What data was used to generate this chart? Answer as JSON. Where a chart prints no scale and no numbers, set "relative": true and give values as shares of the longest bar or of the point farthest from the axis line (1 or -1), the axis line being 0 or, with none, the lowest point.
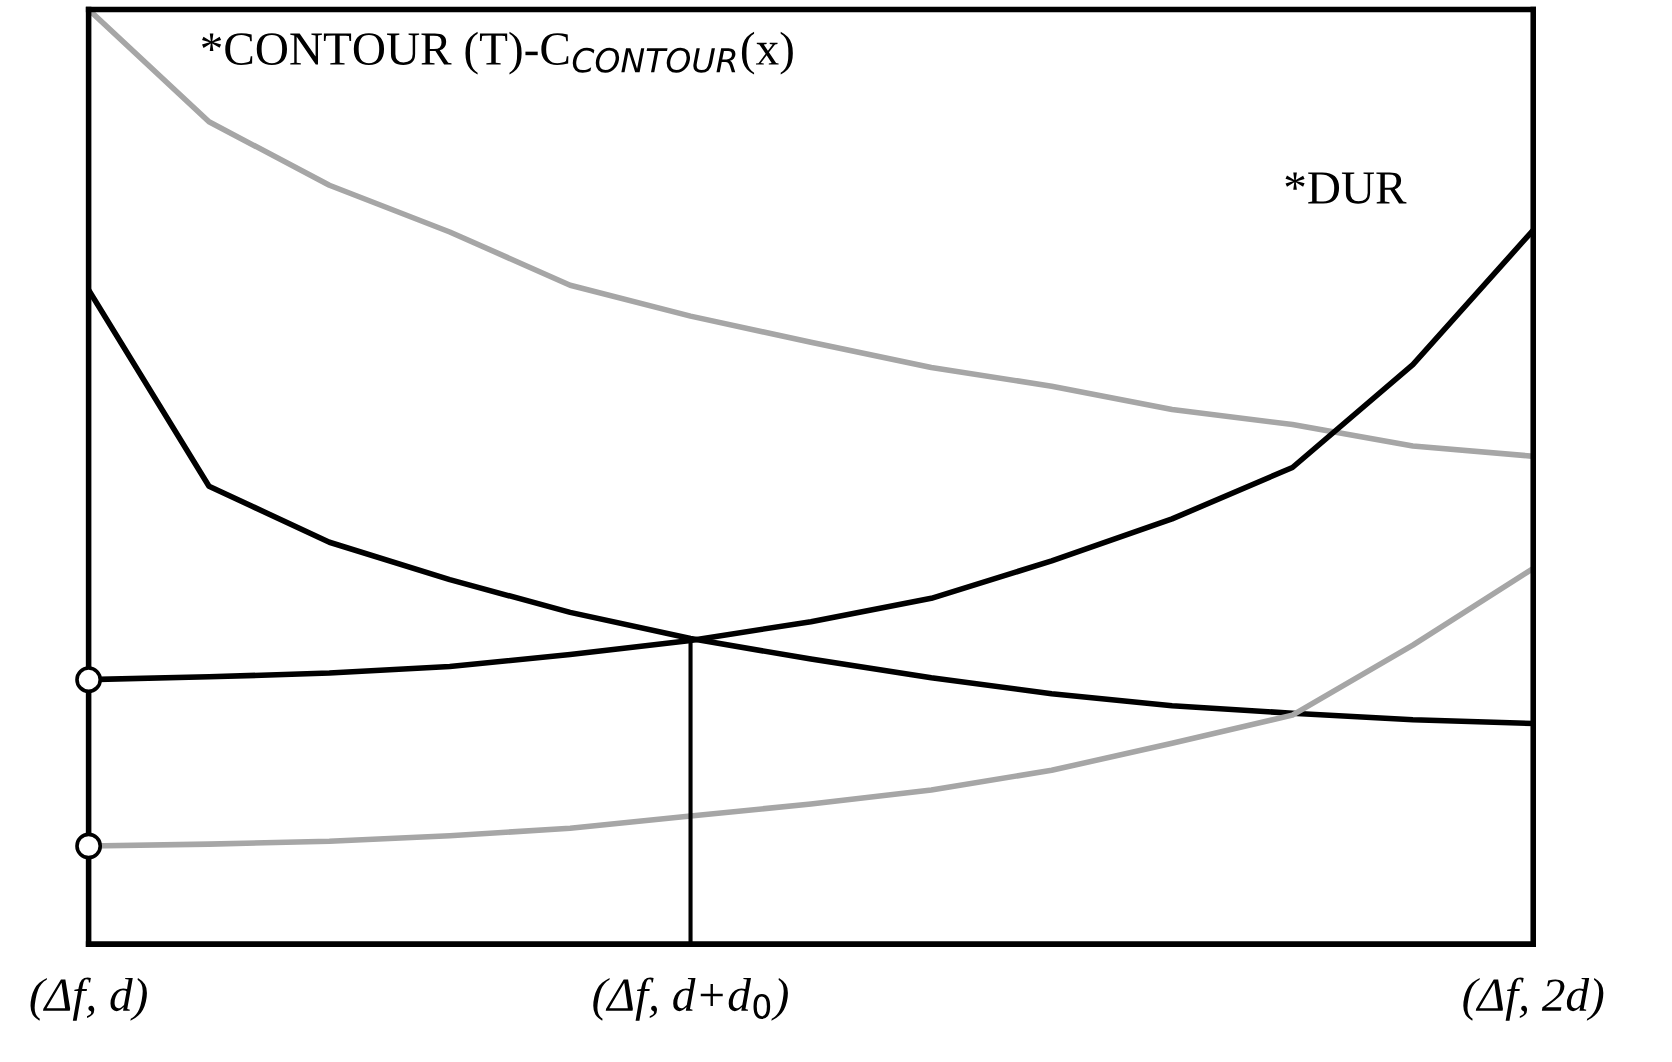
{
  "chart_data": {
    "type": "line",
    "relative": true,
    "categories": [
      "(Δf, d)",
      null,
      null,
      null,
      null,
      "(Δf, d+d$_{0}$)",
      null,
      null,
      null,
      null,
      null,
      null,
      "(Δf, 2d)"
    ],
    "grid": false,
    "legend": false,
    "marker": "none",
    "line_style": "solid",
    "series": [
      {
        "name": "*CONTOUR (T)-C$_{CONTOUR}$(x)",
        "color": "#a6a6a6",
        "values": [
          1,
          0.88,
          0.812,
          0.762,
          0.705,
          0.672,
          0.644,
          0.617,
          0.597,
          0.572,
          0.556,
          0.533,
          0.522
        ]
      },
      {
        "color": "#000000",
        "values": [
          0.7,
          0.49,
          0.43,
          0.39,
          0.355,
          0.327,
          0.305,
          0.285,
          0.268,
          0.255,
          0.247,
          0.24,
          0.236
        ]
      },
      {
        "name": "*DUR",
        "color": "#000000",
        "values": [
          0.283,
          0.286,
          0.29,
          0.297,
          0.31,
          0.325,
          0.345,
          0.37,
          0.41,
          0.455,
          0.51,
          0.62,
          0.764
        ]
      },
      {
        "color": "#a6a6a6",
        "values": [
          0.105,
          0.107,
          0.11,
          0.116,
          0.124,
          0.137,
          0.15,
          0.165,
          0.186,
          0.215,
          0.245,
          0.32,
          0.402
        ]
      },
      {
        "type": "bar",
        "color": "#000000",
        "values": [
          null,
          null,
          null,
          null,
          null,
          0.325,
          null,
          null,
          null,
          null,
          null,
          null,
          null
        ]
      },
      {
        "type": "scatter",
        "marker": "circle",
        "color": "#000000",
        "values": [
          0.283,
          null,
          null,
          null,
          null,
          null,
          null,
          null,
          null,
          null,
          null,
          null,
          null
        ]
      },
      {
        "type": "scatter",
        "marker": "circle",
        "color": "#000000",
        "values": [
          0.105,
          null,
          null,
          null,
          null,
          null,
          null,
          null,
          null,
          null,
          null,
          null,
          null
        ]
      }
    ]
  }
}
